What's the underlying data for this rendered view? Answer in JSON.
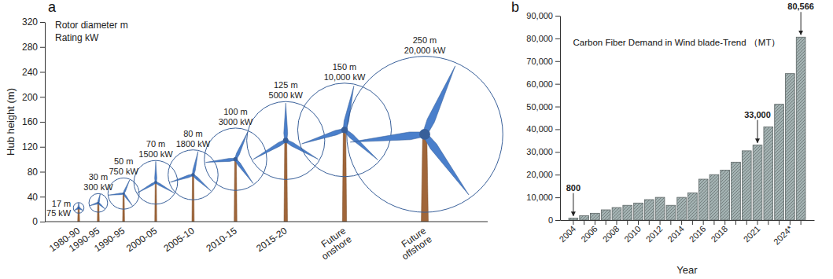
{
  "chart_data": [
    {
      "type": "bubble",
      "panel": "a",
      "ylabel": "Hub height (m)",
      "annotations": [
        "Rotor diameter m",
        "Rating kW"
      ],
      "categories": [
        "1980-90",
        "1990-95",
        "1990-95",
        "2000-05",
        "2005-10",
        "2010-15",
        "2015-20",
        "Future onshore",
        "Future offshore"
      ],
      "values": [
        22,
        30,
        45,
        63,
        75,
        100,
        130,
        147,
        140
      ],
      "diameter": [
        17,
        30,
        50,
        70,
        80,
        100,
        125,
        150,
        250
      ],
      "diameter_labels": [
        "17 m",
        "30 m",
        "50 m",
        "70 m",
        "80 m",
        "100 m",
        "125 m",
        "150 m",
        "250 m"
      ],
      "rating_labels": [
        "75 kW",
        "300 kW",
        "750 kW",
        "1500 kW",
        "1800 kW",
        "3000 kW",
        "5000 kW",
        "10,000 kW",
        "20,000 kW"
      ],
      "ylim": [
        0,
        320
      ],
      "yticks": [
        0,
        40,
        80,
        120,
        160,
        200,
        240,
        280,
        320
      ],
      "color": "#4a7fcb"
    },
    {
      "type": "bar",
      "panel": "b",
      "title": "Carbon Fiber Demand in Wind blade-Trend （MT）",
      "xlabel": "Year",
      "categories": [
        "2004",
        null,
        "2006",
        null,
        "2008",
        null,
        "2010",
        null,
        "2012",
        null,
        "2014",
        null,
        "2016",
        null,
        "2018",
        null,
        null,
        "2021",
        null,
        null,
        "2024*",
        null
      ],
      "values": [
        800,
        1900,
        3000,
        4500,
        5500,
        6500,
        7500,
        9000,
        10000,
        6500,
        10000,
        12000,
        18000,
        20000,
        22000,
        25500,
        30500,
        33000,
        41000,
        51000,
        64500,
        80566
      ],
      "value_labels": [
        "800",
        null,
        null,
        null,
        null,
        null,
        null,
        null,
        null,
        null,
        null,
        null,
        null,
        null,
        null,
        null,
        null,
        "33,000",
        null,
        null,
        null,
        "80,566"
      ],
      "data_labels": true,
      "ylim": [
        0,
        90000
      ],
      "yticks": [
        0,
        {
          "value": 10000,
          "label": "10,000"
        },
        {
          "value": 20000,
          "label": "20,000"
        },
        {
          "value": 30000,
          "label": "30,000"
        },
        {
          "value": 40000,
          "label": "40,000"
        },
        {
          "value": 50000,
          "label": "50,000"
        },
        {
          "value": 60000,
          "label": "60,000"
        },
        {
          "value": 70000,
          "label": "70,000"
        },
        {
          "value": 80000,
          "label": "80,000"
        },
        {
          "value": 90000,
          "label": "90,000"
        }
      ],
      "color": "#a3b2b2"
    }
  ]
}
